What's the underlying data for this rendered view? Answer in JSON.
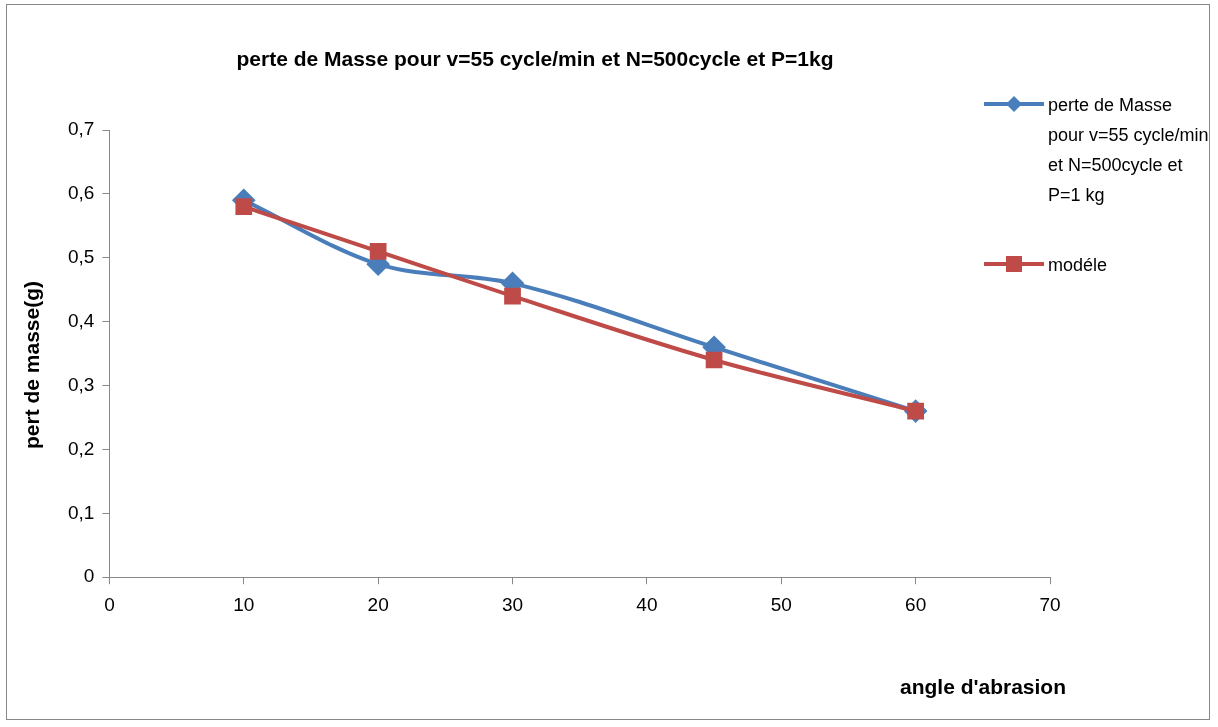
{
  "chart_data": {
    "type": "line",
    "title": "perte de Masse pour v=55 cycle/min et N=500cycle et P=1kg",
    "xlabel": "angle d'abrasion",
    "ylabel": "pert de masse(g)",
    "x": [
      10,
      20,
      30,
      45,
      60
    ],
    "series": [
      {
        "name": "perte de Masse pour v=55 cycle/min et N=500cycle et P=1 kg",
        "color": "#4a7ebb",
        "marker": "diamond",
        "values": [
          0.59,
          0.49,
          0.46,
          0.36,
          0.26
        ]
      },
      {
        "name": "modéle",
        "color": "#be4b48",
        "marker": "square",
        "values": [
          0.58,
          0.51,
          0.44,
          0.34,
          0.26
        ]
      }
    ],
    "xlim": [
      0,
      70
    ],
    "xticks": [
      0,
      10,
      20,
      30,
      40,
      50,
      60,
      70
    ],
    "ylim": [
      0,
      0.7
    ],
    "yticks": [
      {
        "value": 0,
        "label": "0"
      },
      {
        "value": 0.1,
        "label": "0,1"
      },
      {
        "value": 0.2,
        "label": "0,2"
      },
      {
        "value": 0.3,
        "label": "0,3"
      },
      {
        "value": 0.4,
        "label": "0,4"
      },
      {
        "value": 0.5,
        "label": "0,5"
      },
      {
        "value": 0.6,
        "label": "0,6"
      },
      {
        "value": 0.7,
        "label": "0,7"
      }
    ],
    "legend": "right"
  }
}
